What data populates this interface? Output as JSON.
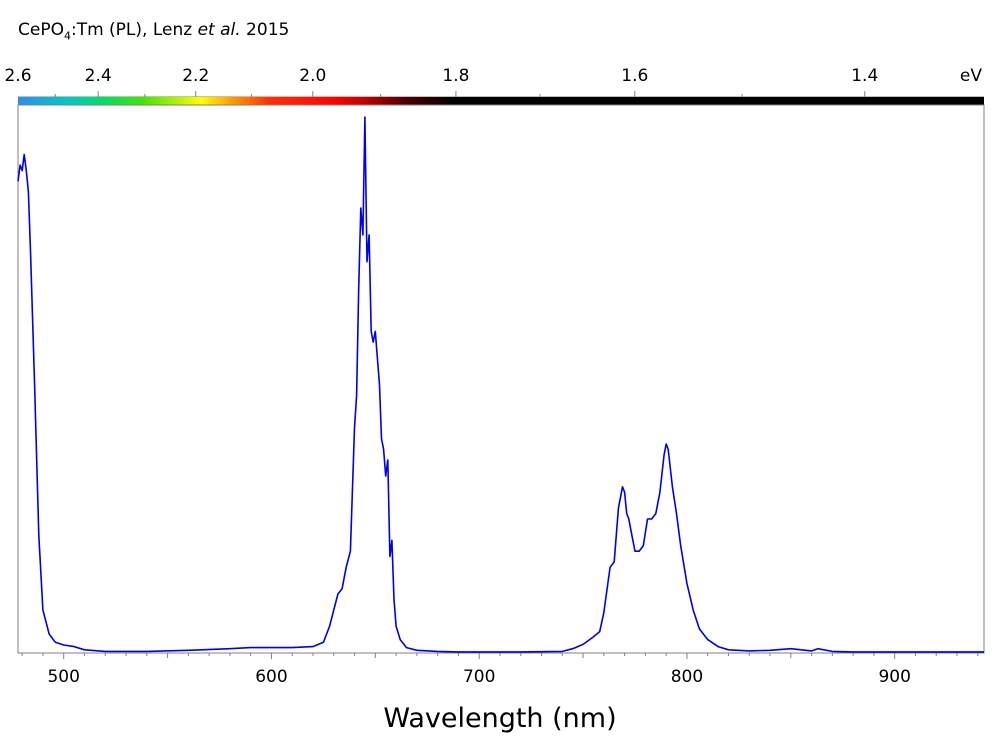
{
  "title": {
    "compound_main": "CePO",
    "compound_sub": "4",
    "compound_rest": ":Tm (PL), Lenz ",
    "author_italic": "et al.",
    "year": " 2015"
  },
  "chart_data": {
    "type": "line",
    "xlabel": "Wavelength (nm)",
    "xlim": [
      478,
      943
    ],
    "ylim": [
      0,
      1
    ],
    "x_ticks": [
      500,
      600,
      700,
      800,
      900
    ],
    "x_ticks_labels": [
      "500",
      "600",
      "700",
      "800",
      "900"
    ],
    "top_axis": {
      "unit_label": "eV",
      "ticks": [
        2.6,
        2.4,
        2.2,
        2.0,
        1.8,
        1.6,
        1.4
      ],
      "tick_labels": [
        "2.6",
        "2.4",
        "2.2",
        "2.0",
        "1.8",
        "1.6",
        "1.4"
      ]
    },
    "grid": false,
    "line_color": "#0000ee",
    "series": [
      {
        "x": [
          478,
          479,
          480,
          481,
          482,
          483,
          484,
          486,
          488,
          490,
          493,
          496,
          500,
          505,
          510,
          520,
          540,
          560,
          580,
          590,
          600,
          610,
          620,
          625,
          628,
          632,
          634,
          636,
          638,
          640,
          641,
          642,
          643,
          644,
          645,
          646,
          647,
          648,
          649,
          650,
          651,
          652,
          653,
          654,
          655,
          656,
          657,
          658,
          659,
          660,
          662,
          665,
          670,
          680,
          690,
          700,
          720,
          740,
          745,
          750,
          755,
          758,
          760,
          763,
          765,
          767,
          769,
          770,
          771,
          772,
          773,
          775,
          777,
          779,
          781,
          783,
          785,
          787,
          789,
          790,
          791,
          793,
          795,
          797,
          800,
          803,
          806,
          810,
          815,
          820,
          830,
          840,
          850,
          855,
          860,
          863,
          870,
          880,
          900,
          920,
          943
        ],
        "y": [
          0.88,
          0.91,
          0.9,
          0.93,
          0.9,
          0.86,
          0.75,
          0.5,
          0.22,
          0.08,
          0.035,
          0.02,
          0.015,
          0.012,
          0.006,
          0.003,
          0.003,
          0.005,
          0.008,
          0.01,
          0.01,
          0.01,
          0.012,
          0.02,
          0.05,
          0.11,
          0.12,
          0.16,
          0.19,
          0.42,
          0.48,
          0.68,
          0.83,
          0.78,
          1.0,
          0.73,
          0.78,
          0.6,
          0.58,
          0.6,
          0.55,
          0.5,
          0.4,
          0.38,
          0.33,
          0.36,
          0.18,
          0.21,
          0.1,
          0.05,
          0.025,
          0.01,
          0.005,
          0.003,
          0.002,
          0.002,
          0.002,
          0.003,
          0.008,
          0.016,
          0.03,
          0.04,
          0.075,
          0.16,
          0.17,
          0.27,
          0.31,
          0.3,
          0.26,
          0.25,
          0.23,
          0.19,
          0.19,
          0.2,
          0.25,
          0.25,
          0.26,
          0.3,
          0.37,
          0.39,
          0.38,
          0.31,
          0.26,
          0.2,
          0.13,
          0.08,
          0.045,
          0.025,
          0.012,
          0.006,
          0.004,
          0.005,
          0.008,
          0.006,
          0.004,
          0.008,
          0.003,
          0.002,
          0.002,
          0.002,
          0.002
        ]
      }
    ]
  }
}
